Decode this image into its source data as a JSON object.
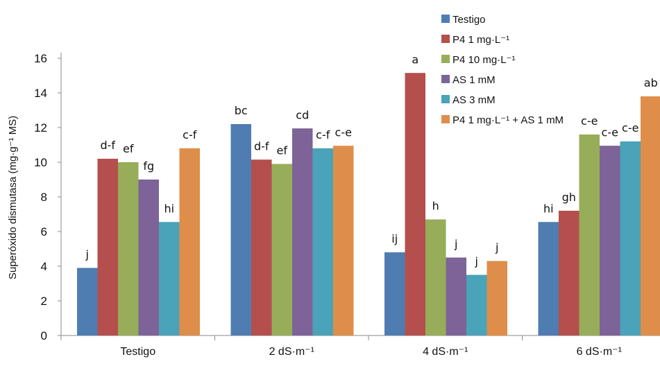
{
  "chart_data": {
    "type": "bar",
    "title": "",
    "xlabel": "",
    "ylabel": "Superóxido dismutasa (mg·g⁻¹ MS)",
    "ylim": [
      0,
      16
    ],
    "yticks": [
      "0",
      "2",
      "4",
      "6",
      "8",
      "10",
      "12",
      "14",
      "16"
    ],
    "categories": [
      "Testigo",
      "2 dS·m⁻¹",
      "4 dS·m⁻¹",
      "6 dS·m⁻¹"
    ],
    "legend_position": "top-right",
    "series": [
      {
        "name": "Testigo",
        "color": "#4f7db1",
        "values": [
          3.9,
          12.2,
          4.8,
          6.55
        ],
        "labels": [
          "j",
          "bc",
          "ij",
          "hi"
        ]
      },
      {
        "name": "P4 1 mg·L⁻¹",
        "color": "#b44f4d",
        "values": [
          10.2,
          10.15,
          15.15,
          7.2
        ],
        "labels": [
          "d-f",
          "d-f",
          "a",
          "gh"
        ]
      },
      {
        "name": "P4 10 mg·L⁻¹",
        "color": "#97ad59",
        "values": [
          10.0,
          9.9,
          6.7,
          11.6
        ],
        "labels": [
          "ef",
          "ef",
          "h",
          "c-e"
        ]
      },
      {
        "name": "AS 1 mM",
        "color": "#7d6397",
        "values": [
          9.0,
          11.95,
          4.5,
          10.95
        ],
        "labels": [
          "fg",
          "cd",
          "j",
          "c-e"
        ]
      },
      {
        "name": "AS 3 mM",
        "color": "#4aa3b8",
        "values": [
          6.55,
          10.8,
          3.5,
          11.2
        ],
        "labels": [
          "hi",
          "c-f",
          "j",
          "c-e"
        ]
      },
      {
        "name": "P4 1 mg·L⁻¹ + AS 1 mM",
        "color": "#de8e4a",
        "values": [
          10.8,
          10.95,
          4.3,
          13.8
        ],
        "labels": [
          "c-f",
          "c-e",
          "j",
          "ab"
        ]
      }
    ]
  }
}
